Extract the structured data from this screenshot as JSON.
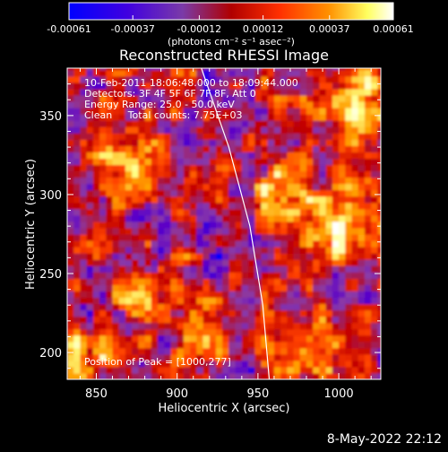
{
  "chart_data": {
    "type": "heatmap",
    "title": "Reconstructed RHESSI Image",
    "xlabel": "Heliocentric X (arcsec)",
    "ylabel": "Heliocentric Y (arcsec)",
    "xlim": [
      832,
      1026
    ],
    "ylim": [
      183,
      380
    ],
    "x_ticks": [
      "850",
      "900",
      "950",
      "1000"
    ],
    "x_tick_values": [
      850,
      900,
      950,
      1000
    ],
    "y_ticks": [
      "200",
      "250",
      "300",
      "350"
    ],
    "y_tick_values": [
      200,
      250,
      300,
      350
    ],
    "colorbar": {
      "ticks": [
        "-0.00061",
        "-0.00037",
        "-0.00012",
        "0.00012",
        "0.00037",
        "0.00061"
      ],
      "tick_values": [
        -0.00061,
        -0.00037,
        -0.00012,
        0.00012,
        0.00037,
        0.00061
      ],
      "range": [
        -0.00061,
        0.00061
      ],
      "unit_label": "(photons cm⁻² s⁻¹ asec⁻²)",
      "colors": [
        "#0000ff",
        "#5a00c8",
        "#8a3aa8",
        "#c00000",
        "#ff4000",
        "#ffa000",
        "#ffff80",
        "#ffffff"
      ]
    },
    "annotations": [
      "10-Feb-2011 18:06:48.000 to 18:09:44.000",
      "Detectors: 3F 4F 5F 6F 7F 8F, Att 0",
      "Energy Range: 25.0 - 50.0 keV",
      "Clean     Total counts: 7.75E+03"
    ],
    "peak_label": "Position of Peak = [1000,277]",
    "limb_line_points": [
      [
        915,
        380
      ],
      [
        932,
        330
      ],
      [
        945,
        280
      ],
      [
        953,
        230
      ],
      [
        957,
        183
      ]
    ],
    "hot_spots": [
      {
        "x": 1000,
        "y": 277,
        "intensity": 1.0
      },
      {
        "x": 965,
        "y": 300,
        "intensity": 0.7
      },
      {
        "x": 1015,
        "y": 365,
        "intensity": 0.85
      },
      {
        "x": 870,
        "y": 320,
        "intensity": 0.6
      },
      {
        "x": 915,
        "y": 215,
        "intensity": 0.55
      },
      {
        "x": 840,
        "y": 195,
        "intensity": 0.6
      },
      {
        "x": 1010,
        "y": 330,
        "intensity": 0.55
      },
      {
        "x": 985,
        "y": 205,
        "intensity": 0.5
      },
      {
        "x": 880,
        "y": 240,
        "intensity": 0.45
      }
    ]
  },
  "footer": {
    "date": "8-May-2022 22:12"
  }
}
